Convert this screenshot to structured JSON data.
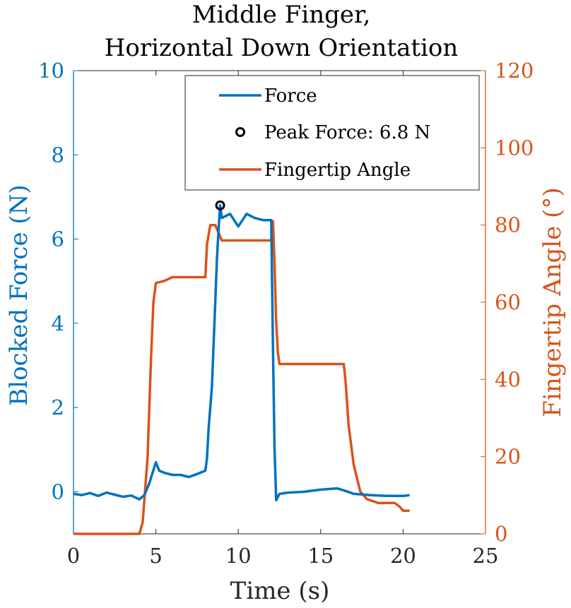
{
  "chart_data": {
    "type": "line",
    "title": [
      "Middle Finger,",
      "Horizontal Down Orientation"
    ],
    "xlabel": "Time (s)",
    "ylabel_left": "Blocked Force (N)",
    "ylabel_right": "Fingertip Angle (°)",
    "xlim": [
      0,
      25
    ],
    "ylim_left": [
      -1,
      10
    ],
    "ylim_right": [
      0,
      120
    ],
    "xticks": [
      "0",
      "5",
      "10",
      "15",
      "20",
      "25"
    ],
    "yticks_left": [
      "0",
      "2",
      "4",
      "6",
      "8",
      "10"
    ],
    "yticks_right": [
      "0",
      "20",
      "40",
      "60",
      "80",
      "100",
      "120"
    ],
    "grid": false,
    "legend_position": "top-right",
    "colors": {
      "force": "#0072BD",
      "angle": "#D95319",
      "peak": "#000000"
    },
    "legend": [
      {
        "label": "Force",
        "kind": "line",
        "color": "#0072BD"
      },
      {
        "label": "Peak Force: 6.8 N",
        "kind": "marker",
        "color": "#000000"
      },
      {
        "label": "Fingertip Angle",
        "kind": "line",
        "color": "#D95319"
      }
    ],
    "series": [
      {
        "name": "Force",
        "axis": "left",
        "x": [
          0,
          0.5,
          1,
          1.5,
          2,
          2.5,
          3,
          3.5,
          4,
          4.3,
          4.6,
          4.8,
          5.0,
          5.2,
          5.5,
          6,
          6.5,
          7,
          7.5,
          8.0,
          8.1,
          8.2,
          8.4,
          8.6,
          8.7,
          8.8,
          8.9,
          9.0,
          9.5,
          10,
          10.5,
          11,
          11.5,
          12.0,
          12.1,
          12.2,
          12.3,
          12.5,
          13,
          14,
          15,
          16,
          16.5,
          17,
          18,
          19,
          20,
          20.4
        ],
        "y": [
          -0.05,
          -0.08,
          -0.03,
          -0.1,
          -0.02,
          -0.07,
          -0.12,
          -0.09,
          -0.18,
          -0.08,
          0.2,
          0.45,
          0.7,
          0.5,
          0.45,
          0.4,
          0.4,
          0.35,
          0.42,
          0.5,
          0.8,
          1.5,
          2.5,
          4.5,
          5.5,
          6.2,
          6.8,
          6.5,
          6.6,
          6.3,
          6.6,
          6.5,
          6.45,
          6.45,
          3.5,
          1.0,
          -0.2,
          -0.05,
          -0.02,
          0.0,
          0.05,
          0.08,
          0.02,
          -0.05,
          -0.08,
          -0.1,
          -0.1,
          -0.08
        ]
      },
      {
        "name": "Fingertip Angle",
        "axis": "right",
        "x": [
          0,
          4.0,
          4.2,
          4.5,
          4.7,
          4.85,
          5.0,
          5.5,
          6,
          8.0,
          8.1,
          8.3,
          8.6,
          8.8,
          9.0,
          12.0,
          12.1,
          12.2,
          12.3,
          12.4,
          12.5,
          16.4,
          16.5,
          16.7,
          17.0,
          17.4,
          17.8,
          18.5,
          19.5,
          19.8,
          20.0,
          20.4
        ],
        "y": [
          0,
          0,
          3,
          20,
          45,
          60,
          65,
          65.5,
          66.5,
          66.5,
          75,
          80,
          80,
          78,
          76,
          76,
          81,
          70,
          55,
          47,
          44,
          44,
          40,
          28,
          18,
          11,
          9,
          8,
          8,
          7,
          6,
          6
        ]
      }
    ],
    "peak": {
      "x": 8.9,
      "y": 6.8
    }
  }
}
